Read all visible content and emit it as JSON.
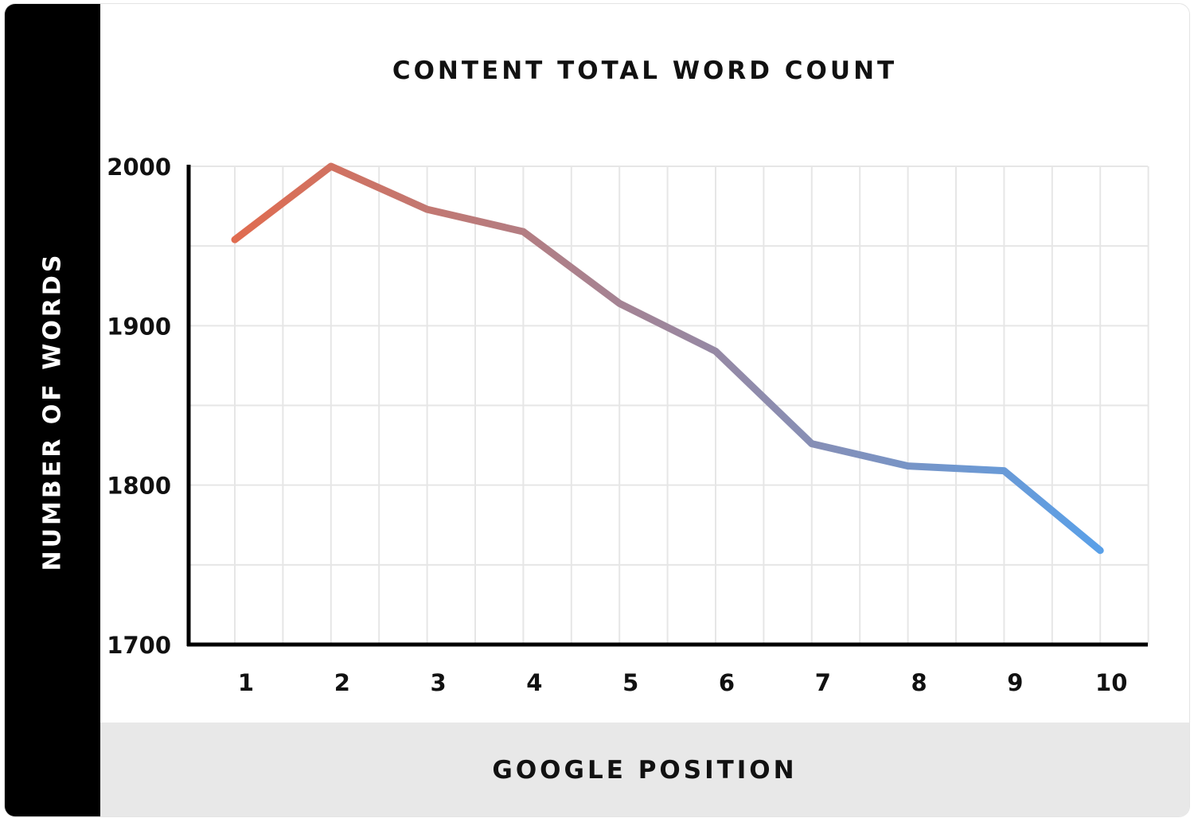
{
  "chart_data": {
    "type": "line",
    "title": "CONTENT TOTAL WORD COUNT",
    "xlabel": "GOOGLE POSITION",
    "ylabel": "NUMBER OF WORDS",
    "categories": [
      "1",
      "2",
      "3",
      "4",
      "5",
      "6",
      "7",
      "8",
      "9",
      "10"
    ],
    "series": [
      {
        "values": [
          1954,
          2000,
          1973,
          1959,
          1914,
          1884,
          1826,
          1812,
          1809,
          1759
        ]
      }
    ],
    "ylim": [
      1700,
      2000
    ],
    "yticks": [
      "1700",
      "1800",
      "1900",
      "2000"
    ],
    "grid": true,
    "line_gradient": [
      "#e06c50",
      "#5aa0e8"
    ]
  }
}
